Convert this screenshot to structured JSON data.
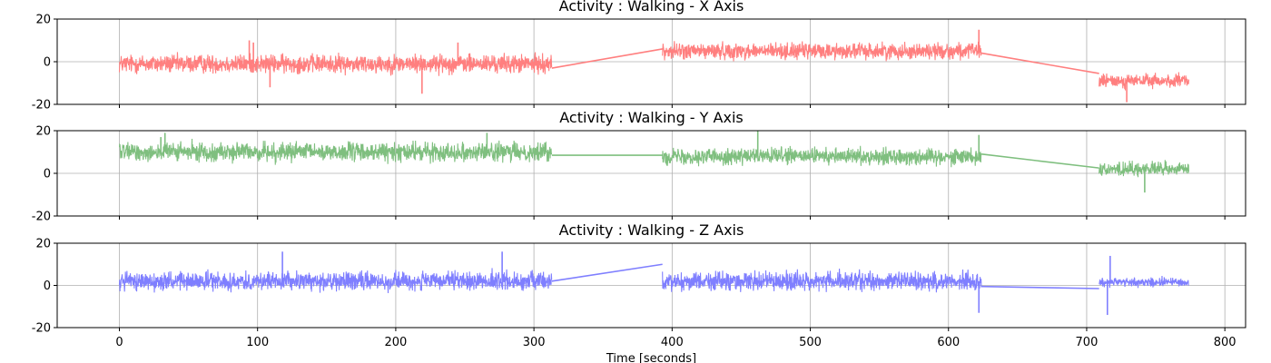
{
  "chart_data": [
    {
      "type": "line",
      "title": "Activity : Walking - X Axis",
      "xlabel": "",
      "ylabel": "",
      "xlim": [
        -45,
        815
      ],
      "ylim": [
        -20,
        20
      ],
      "x_ticks": [
        0,
        100,
        200,
        300,
        400,
        500,
        600,
        700,
        800
      ],
      "x_tick_labels": [],
      "y_ticks": [
        -20,
        0,
        20
      ],
      "y_tick_labels": [
        "-20",
        "0",
        "20"
      ],
      "grid": true,
      "series": [
        {
          "color": "#ff7f7f",
          "segments": [
            {
              "x": [
                0,
                313
              ],
              "center": -1,
              "amp": 4
            },
            {
              "x": [
                393,
                624
              ],
              "center": 5,
              "amp": 3.5
            },
            {
              "x": [
                709,
                774
              ],
              "center": -9,
              "amp": 3
            }
          ],
          "bridges": [
            {
              "x": [
                313,
                393
              ],
              "y": [
                -3,
                6
              ]
            },
            {
              "x": [
                624,
                709
              ],
              "y": [
                4,
                -5.5
              ]
            }
          ],
          "spikes": [
            {
              "x": 94,
              "y": 10
            },
            {
              "x": 97,
              "y": 9
            },
            {
              "x": 109,
              "y": -12
            },
            {
              "x": 219,
              "y": -15
            },
            {
              "x": 245,
              "y": 9
            },
            {
              "x": 622,
              "y": 15
            },
            {
              "x": 729,
              "y": -19
            }
          ]
        }
      ]
    },
    {
      "type": "line",
      "title": "Activity : Walking - Y Axis",
      "xlabel": "",
      "ylabel": "",
      "xlim": [
        -45,
        815
      ],
      "ylim": [
        -20,
        20
      ],
      "x_ticks": [
        0,
        100,
        200,
        300,
        400,
        500,
        600,
        700,
        800
      ],
      "x_tick_labels": [],
      "y_ticks": [
        -20,
        0,
        20
      ],
      "y_tick_labels": [
        "-20",
        "0",
        "20"
      ],
      "grid": true,
      "series": [
        {
          "color": "#7fbf7f",
          "segments": [
            {
              "x": [
                0,
                313
              ],
              "center": 10,
              "amp": 4
            },
            {
              "x": [
                393,
                624
              ],
              "center": 8,
              "amp": 3.5
            },
            {
              "x": [
                709,
                774
              ],
              "center": 2,
              "amp": 3
            }
          ],
          "bridges": [
            {
              "x": [
                313,
                393
              ],
              "y": [
                8.5,
                8.5
              ]
            },
            {
              "x": [
                624,
                709
              ],
              "y": [
                9,
                2.5
              ]
            }
          ],
          "spikes": [
            {
              "x": 30,
              "y": 17
            },
            {
              "x": 33,
              "y": 19
            },
            {
              "x": 266,
              "y": 19
            },
            {
              "x": 462,
              "y": 20
            },
            {
              "x": 622,
              "y": 18
            },
            {
              "x": 742,
              "y": -9
            }
          ]
        }
      ]
    },
    {
      "type": "line",
      "title": "Activity : Walking - Z Axis",
      "xlabel": "Time [seconds]",
      "ylabel": "",
      "xlim": [
        -45,
        815
      ],
      "ylim": [
        -20,
        20
      ],
      "x_ticks": [
        0,
        100,
        200,
        300,
        400,
        500,
        600,
        700,
        800
      ],
      "x_tick_labels": [
        "0",
        "100",
        "200",
        "300",
        "400",
        "500",
        "600",
        "700",
        "800"
      ],
      "y_ticks": [
        -20,
        0,
        20
      ],
      "y_tick_labels": [
        "-20",
        "0",
        "20"
      ],
      "grid": true,
      "series": [
        {
          "color": "#7f7fff",
          "segments": [
            {
              "x": [
                0,
                313
              ],
              "center": 2,
              "amp": 4
            },
            {
              "x": [
                393,
                624
              ],
              "center": 2,
              "amp": 4
            },
            {
              "x": [
                709,
                774
              ],
              "center": 1.5,
              "amp": 2
            }
          ],
          "bridges": [
            {
              "x": [
                313,
                393
              ],
              "y": [
                2,
                10
              ]
            },
            {
              "x": [
                624,
                709
              ],
              "y": [
                -0.5,
                -1.5
              ]
            }
          ],
          "spikes": [
            {
              "x": 118,
              "y": 16
            },
            {
              "x": 277,
              "y": 16
            },
            {
              "x": 622,
              "y": -13
            },
            {
              "x": 715,
              "y": -14
            },
            {
              "x": 717,
              "y": 14
            }
          ]
        }
      ]
    }
  ]
}
